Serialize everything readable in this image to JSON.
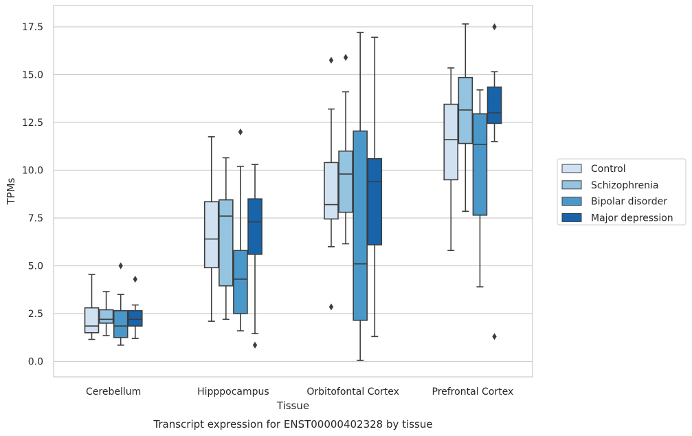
{
  "chart_data": {
    "type": "box",
    "caption": "Transcript expression for ENST00000402328 by tissue",
    "xlabel": "Tissue",
    "ylabel": "TPMs",
    "ylim": [
      -0.8,
      18.5
    ],
    "yticks": [
      "0.0",
      "2.5",
      "5.0",
      "7.5",
      "10.0",
      "12.5",
      "15.0",
      "17.5"
    ],
    "grid": "horizontal",
    "legend_position": "right",
    "categories": [
      "Cerebellum",
      "Hipppocampus",
      "Orbitofontal Cortex",
      "Prefrontal Cortex"
    ],
    "series": [
      {
        "name": "Control",
        "color": "#d0e1f2",
        "boxes": [
          {
            "whislo": 1.15,
            "q1": 1.5,
            "med": 1.85,
            "q3": 2.8,
            "whishi": 4.55,
            "fliers": []
          },
          {
            "whislo": 2.1,
            "q1": 4.9,
            "med": 6.4,
            "q3": 8.35,
            "whishi": 11.75,
            "fliers": []
          },
          {
            "whislo": 6.0,
            "q1": 7.45,
            "med": 8.2,
            "q3": 10.4,
            "whishi": 13.2,
            "fliers": [
              2.85,
              15.75
            ]
          },
          {
            "whislo": 5.8,
            "q1": 9.5,
            "med": 11.6,
            "q3": 13.45,
            "whishi": 15.35,
            "fliers": []
          }
        ]
      },
      {
        "name": "Schizophrenia",
        "color": "#94c4df",
        "boxes": [
          {
            "whislo": 1.35,
            "q1": 2.0,
            "med": 2.2,
            "q3": 2.7,
            "whishi": 3.65,
            "fliers": []
          },
          {
            "whislo": 2.2,
            "q1": 3.95,
            "med": 7.6,
            "q3": 8.45,
            "whishi": 10.65,
            "fliers": []
          },
          {
            "whislo": 6.15,
            "q1": 7.8,
            "med": 9.8,
            "q3": 11.0,
            "whishi": 14.1,
            "fliers": [
              15.9
            ]
          },
          {
            "whislo": 7.85,
            "q1": 11.4,
            "med": 13.15,
            "q3": 14.85,
            "whishi": 17.65,
            "fliers": []
          }
        ]
      },
      {
        "name": "Bipolar disorder",
        "color": "#4a98c9",
        "boxes": [
          {
            "whislo": 0.85,
            "q1": 1.25,
            "med": 1.85,
            "q3": 2.65,
            "whishi": 3.5,
            "fliers": [
              5.0
            ]
          },
          {
            "whislo": 1.6,
            "q1": 2.5,
            "med": 4.3,
            "q3": 5.8,
            "whishi": 10.2,
            "fliers": [
              12.0
            ]
          },
          {
            "whislo": 0.05,
            "q1": 2.15,
            "med": 5.1,
            "q3": 12.05,
            "whishi": 17.2,
            "fliers": []
          },
          {
            "whislo": 3.9,
            "q1": 7.65,
            "med": 11.35,
            "q3": 12.95,
            "whishi": 14.2,
            "fliers": []
          }
        ]
      },
      {
        "name": "Major depression",
        "color": "#1764ab",
        "boxes": [
          {
            "whislo": 1.2,
            "q1": 1.85,
            "med": 2.2,
            "q3": 2.65,
            "whishi": 2.95,
            "fliers": [
              4.3
            ]
          },
          {
            "whislo": 1.45,
            "q1": 5.6,
            "med": 7.3,
            "q3": 8.5,
            "whishi": 10.3,
            "fliers": [
              0.85
            ]
          },
          {
            "whislo": 1.3,
            "q1": 6.1,
            "med": 9.4,
            "q3": 10.6,
            "whishi": 16.95,
            "fliers": []
          },
          {
            "whislo": 11.5,
            "q1": 12.45,
            "med": 13.0,
            "q3": 14.35,
            "whishi": 15.15,
            "fliers": [
              1.3,
              17.5
            ]
          }
        ]
      }
    ]
  }
}
